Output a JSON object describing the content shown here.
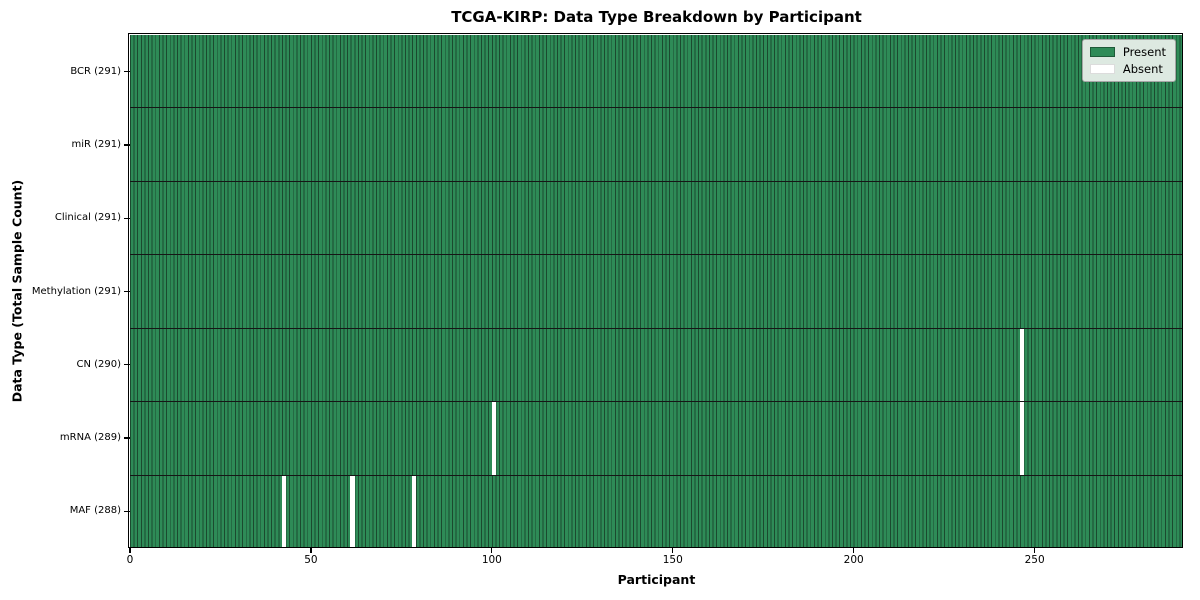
{
  "chart_data": {
    "type": "heatmap",
    "title": "TCGA-KIRP: Data Type Breakdown by Participant",
    "xlabel": "Participant",
    "ylabel": "Data Type (Total Sample Count)",
    "x_ticks": [
      0,
      50,
      100,
      150,
      200,
      250
    ],
    "xlim": [
      0,
      291
    ],
    "n_participants": 291,
    "grid": false,
    "rows": [
      {
        "label": "BCR (291)",
        "data_type": "BCR",
        "present_count": 291,
        "absent_participants": []
      },
      {
        "label": "miR (291)",
        "data_type": "miR",
        "present_count": 291,
        "absent_participants": []
      },
      {
        "label": "Clinical (291)",
        "data_type": "Clinical",
        "present_count": 291,
        "absent_participants": []
      },
      {
        "label": "Methylation (291)",
        "data_type": "Methylation",
        "present_count": 291,
        "absent_participants": []
      },
      {
        "label": "CN (290)",
        "data_type": "CN",
        "present_count": 290,
        "absent_participants": [
          246
        ]
      },
      {
        "label": "mRNA (289)",
        "data_type": "mRNA",
        "present_count": 289,
        "absent_participants": [
          100,
          246
        ]
      },
      {
        "label": "MAF (288)",
        "data_type": "MAF",
        "present_count": 288,
        "absent_participants": [
          42,
          61,
          78
        ]
      }
    ],
    "legend": {
      "position": "upper right",
      "entries": [
        {
          "label": "Present",
          "color": "#2e8b57"
        },
        {
          "label": "Absent",
          "color": "#ffffff"
        }
      ]
    },
    "colors": {
      "present": "#2e8b57",
      "absent": "#ffffff",
      "cell_edge": "#1b4a2f",
      "row_separator": "#161616",
      "plot_border": "#000000",
      "legend_background": "#dde9e1",
      "legend_border": "#a6a6a6",
      "text": "#000000"
    }
  }
}
